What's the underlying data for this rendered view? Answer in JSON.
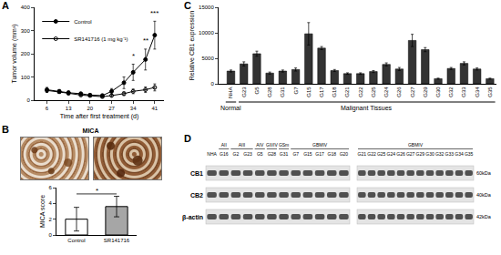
{
  "chart_data": [
    {
      "panel_label": "A",
      "type": "line",
      "x_label": "Time after first treatment (d)",
      "y_label": "Tumor volume (mm³)",
      "xlim": [
        2,
        44
      ],
      "xticks": [
        6,
        13,
        20,
        27,
        34,
        41
      ],
      "ylim": [
        0,
        400
      ],
      "yticks": [
        0,
        100,
        200,
        300,
        400
      ],
      "grid": false,
      "legend": "upper left",
      "x": [
        6,
        10,
        13,
        17,
        20,
        24,
        27,
        31,
        34,
        38,
        41
      ],
      "series": [
        {
          "name": "Control",
          "color": "#000000",
          "marker": "circle",
          "values": [
            45,
            38,
            32,
            28,
            22,
            20,
            38,
            75,
            120,
            175,
            280
          ],
          "errors": [
            10,
            8,
            8,
            6,
            6,
            6,
            12,
            25,
            35,
            45,
            60
          ]
        },
        {
          "name": "SR141716 (1 mg kg⁻¹)",
          "color": "#000000",
          "marker": "circle-open",
          "values": [
            42,
            36,
            30,
            22,
            20,
            15,
            20,
            28,
            38,
            45,
            55
          ],
          "errors": [
            8,
            6,
            6,
            5,
            5,
            4,
            6,
            8,
            10,
            12,
            15
          ]
        }
      ],
      "annotations": [
        {
          "x": 34,
          "y": 165,
          "text": "*"
        },
        {
          "x": 38,
          "y": 230,
          "text": "**"
        },
        {
          "x": 41,
          "y": 350,
          "text": "***"
        }
      ]
    },
    {
      "panel_label": "B",
      "type": "bar",
      "y_label": "MICA score",
      "categories": [
        "Control",
        "SR141716"
      ],
      "values": [
        2.0,
        3.6
      ],
      "errors": [
        1.5,
        1.3
      ],
      "colors": [
        "#ffffff",
        "#a6a6a6"
      ],
      "ylim": [
        0,
        6
      ],
      "yticks": [
        0,
        2,
        4,
        6
      ],
      "grid": false,
      "annotations": [
        {
          "x": [
            0,
            1
          ],
          "y": 5.2,
          "text": "*"
        }
      ]
    },
    {
      "panel_label": "C",
      "type": "bar",
      "y_label": "Relative CB1 expression",
      "categories": [
        "NHA",
        "G23",
        "G5",
        "G28",
        "G31",
        "G7",
        "G15",
        "G17",
        "G18",
        "G21",
        "G22",
        "G25",
        "G24",
        "G26",
        "G27",
        "G29",
        "G30",
        "G32",
        "G33",
        "G34",
        "G35"
      ],
      "values": [
        2500,
        3900,
        5900,
        2100,
        2500,
        2800,
        9800,
        7000,
        2600,
        2000,
        2000,
        2400,
        3800,
        2900,
        8500,
        6700,
        1000,
        3000,
        4000,
        2900,
        1000
      ],
      "errors": [
        200,
        400,
        500,
        200,
        200,
        300,
        2200,
        300,
        200,
        150,
        150,
        200,
        300,
        300,
        1200,
        400,
        100,
        200,
        300,
        200,
        100
      ],
      "color": "#333333",
      "ylim": [
        0,
        15000
      ],
      "yticks": [
        0,
        5000,
        10000,
        15000
      ],
      "grid": false,
      "groups": [
        {
          "label": "Normal",
          "span": [
            0,
            0
          ]
        },
        {
          "label": "Malignant Tissues",
          "span": [
            1,
            20
          ]
        }
      ]
    }
  ],
  "images": [
    {
      "panel_label": "B",
      "title": "MICA"
    }
  ],
  "blot": {
    "panel_label": "D",
    "blots": [
      {
        "lanes": [
          "NHA",
          "G16",
          "G2",
          "G23",
          "G5",
          "G28",
          "G31",
          "G7",
          "G15",
          "G17",
          "G18",
          "G20"
        ],
        "groups": [
          {
            "label": "AII",
            "span": [
              1,
              1
            ]
          },
          {
            "label": "AIII",
            "span": [
              2,
              3
            ]
          },
          {
            "label": "AIV",
            "span": [
              4,
              4
            ]
          },
          {
            "label": "GII/IV",
            "span": [
              5,
              5
            ]
          },
          {
            "label": "GSm",
            "span": [
              6,
              6
            ]
          },
          {
            "label": "GBMIV",
            "span": [
              7,
              11
            ]
          }
        ]
      },
      {
        "lanes": [
          "G21",
          "G22",
          "G25",
          "G24",
          "G26",
          "G27",
          "G29",
          "G30",
          "G32",
          "G33",
          "G34",
          "G35"
        ],
        "groups": [
          {
            "label": "GBMIV",
            "span": [
              0,
              11
            ]
          }
        ]
      }
    ],
    "rows": [
      {
        "label": "CB1",
        "size": "60kDa"
      },
      {
        "label": "CB2",
        "size": "40kDa"
      },
      {
        "label": "β-actin",
        "size": "42kDa"
      }
    ]
  }
}
